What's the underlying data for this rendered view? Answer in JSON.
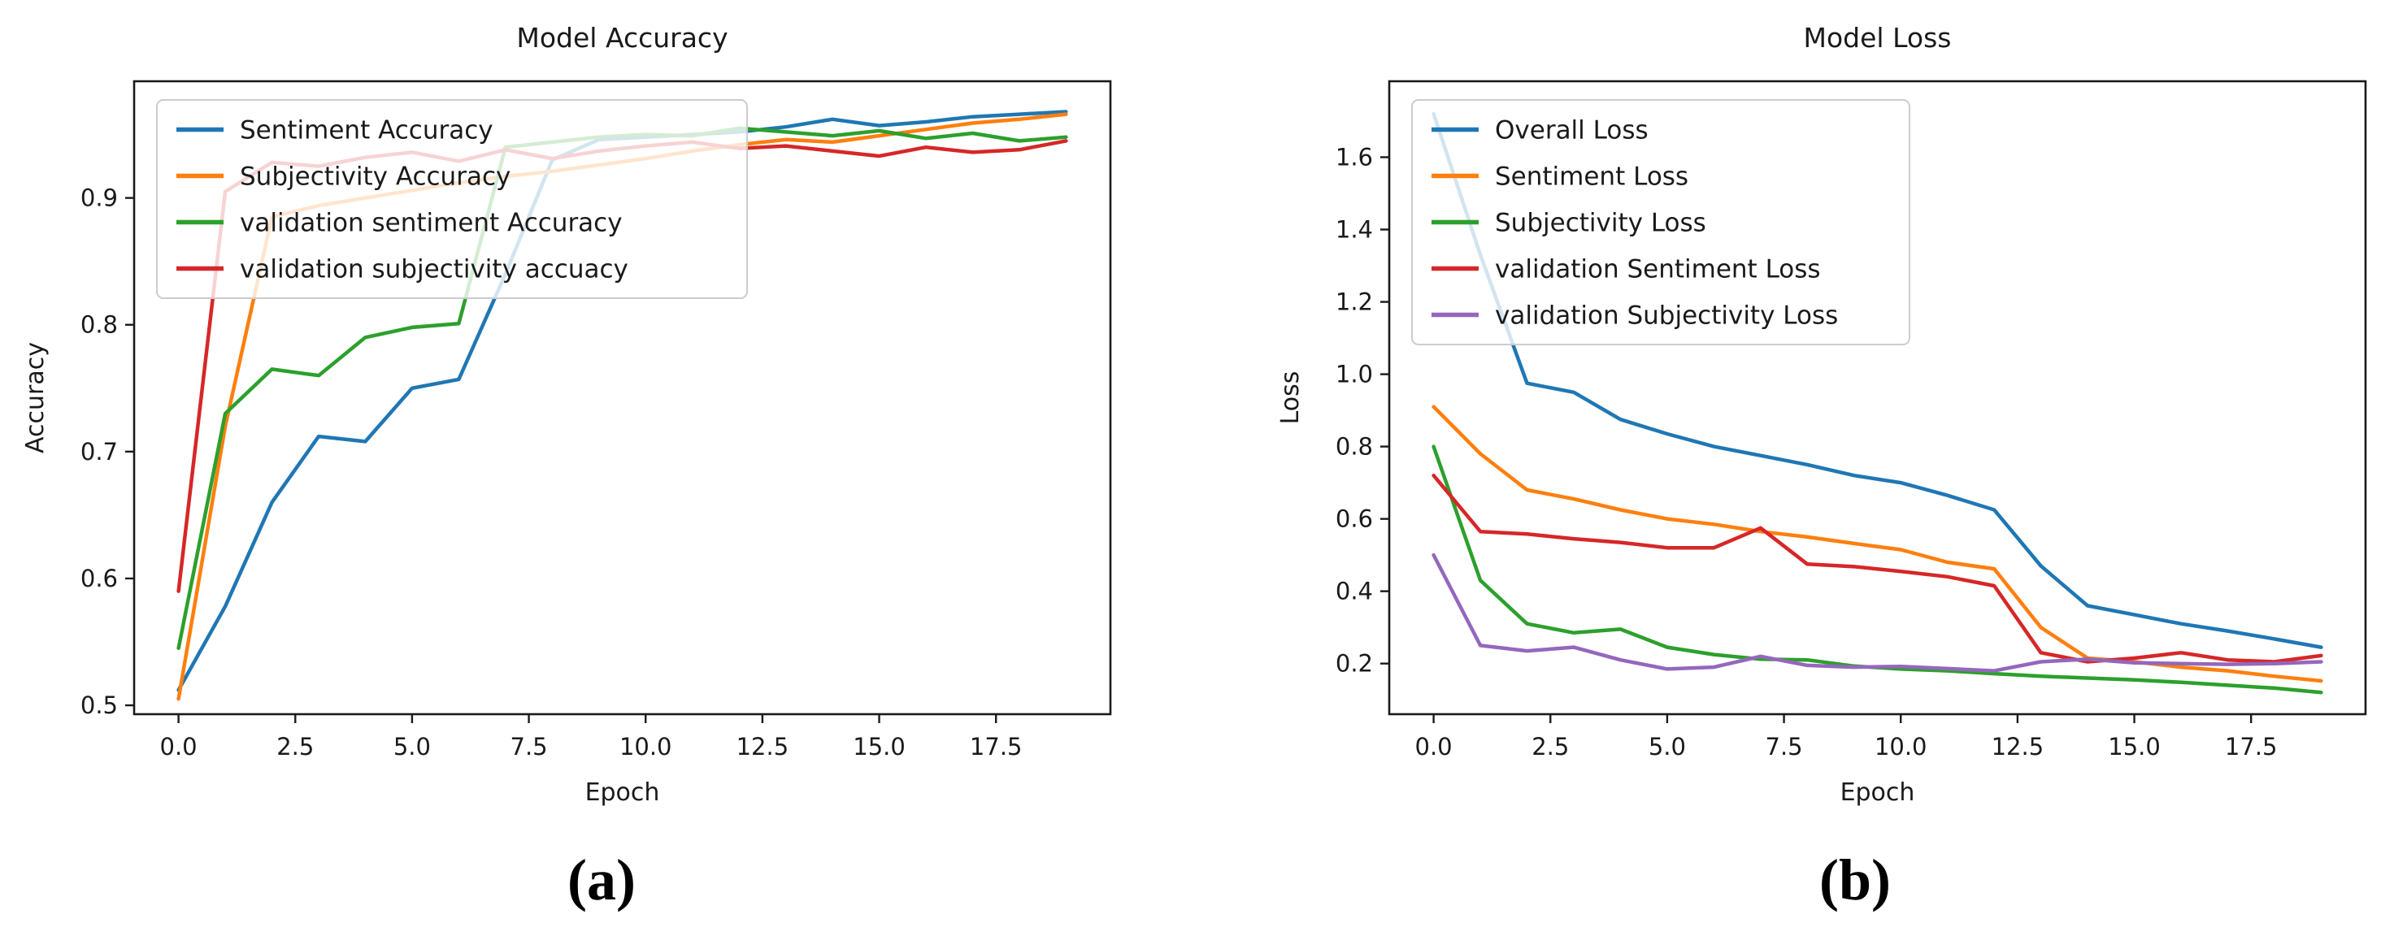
{
  "figure": {
    "captions": [
      "(a)",
      "(b)"
    ]
  },
  "chart_data": [
    {
      "type": "line",
      "title": "Model Accuracy",
      "xlabel": "Epoch",
      "ylabel": "Accuracy",
      "legend_position": "upper left",
      "grid": false,
      "x": [
        0,
        1,
        2,
        3,
        4,
        5,
        6,
        7,
        8,
        9,
        10,
        11,
        12,
        13,
        14,
        15,
        16,
        17,
        18,
        19
      ],
      "xlim": [
        -0.95,
        19.95
      ],
      "ylim": [
        0.493,
        0.992
      ],
      "xticks": [
        0.0,
        2.5,
        5.0,
        7.5,
        10.0,
        12.5,
        15.0,
        17.5
      ],
      "xtick_labels": [
        "0.0",
        "2.5",
        "5.0",
        "7.5",
        "10.0",
        "12.5",
        "15.0",
        "17.5"
      ],
      "yticks": [
        0.5,
        0.6,
        0.7,
        0.8,
        0.9
      ],
      "ytick_labels": [
        "0.5",
        "0.6",
        "0.7",
        "0.8",
        "0.9"
      ],
      "series": [
        {
          "name": "Sentiment Accuracy",
          "color": "#1f77b4",
          "values": [
            0.512,
            0.578,
            0.66,
            0.712,
            0.708,
            0.75,
            0.757,
            0.84,
            0.93,
            0.946,
            0.948,
            0.95,
            0.952,
            0.956,
            0.962,
            0.957,
            0.96,
            0.964,
            0.966,
            0.968
          ]
        },
        {
          "name": "Subjectivity Accuracy",
          "color": "#ff7f0e",
          "values": [
            0.505,
            0.72,
            0.885,
            0.894,
            0.9,
            0.906,
            0.912,
            0.917,
            0.921,
            0.926,
            0.931,
            0.937,
            0.942,
            0.946,
            0.944,
            0.949,
            0.954,
            0.959,
            0.962,
            0.966
          ]
        },
        {
          "name": "validation sentiment Accuracy",
          "color": "#2ca02c",
          "values": [
            0.545,
            0.73,
            0.765,
            0.76,
            0.79,
            0.798,
            0.801,
            0.94,
            0.944,
            0.948,
            0.95,
            0.949,
            0.955,
            0.952,
            0.949,
            0.953,
            0.947,
            0.951,
            0.945,
            0.948
          ]
        },
        {
          "name": "validation subjectivity accuacy",
          "color": "#d62728",
          "values": [
            0.59,
            0.905,
            0.928,
            0.925,
            0.932,
            0.936,
            0.929,
            0.938,
            0.931,
            0.937,
            0.941,
            0.944,
            0.939,
            0.941,
            0.937,
            0.933,
            0.94,
            0.936,
            0.938,
            0.945
          ]
        }
      ]
    },
    {
      "type": "line",
      "title": "Model Loss",
      "xlabel": "Epoch",
      "ylabel": "Loss",
      "legend_position": "upper left",
      "grid": false,
      "x": [
        0,
        1,
        2,
        3,
        4,
        5,
        6,
        7,
        8,
        9,
        10,
        11,
        12,
        13,
        14,
        15,
        16,
        17,
        18,
        19
      ],
      "xlim": [
        -0.95,
        19.95
      ],
      "ylim": [
        0.06,
        1.81
      ],
      "xticks": [
        0.0,
        2.5,
        5.0,
        7.5,
        10.0,
        12.5,
        15.0,
        17.5
      ],
      "xtick_labels": [
        "0.0",
        "2.5",
        "5.0",
        "7.5",
        "10.0",
        "12.5",
        "15.0",
        "17.5"
      ],
      "yticks": [
        0.2,
        0.4,
        0.6,
        0.8,
        1.0,
        1.2,
        1.4,
        1.6
      ],
      "ytick_labels": [
        "0.2",
        "0.4",
        "0.6",
        "0.8",
        "1.0",
        "1.2",
        "1.4",
        "1.6"
      ],
      "series": [
        {
          "name": "Overall Loss",
          "color": "#1f77b4",
          "values": [
            1.72,
            1.33,
            0.975,
            0.95,
            0.875,
            0.835,
            0.8,
            0.775,
            0.75,
            0.72,
            0.7,
            0.665,
            0.625,
            0.47,
            0.36,
            0.335,
            0.31,
            0.29,
            0.268,
            0.245
          ]
        },
        {
          "name": "Sentiment Loss",
          "color": "#ff7f0e",
          "values": [
            0.91,
            0.78,
            0.68,
            0.655,
            0.625,
            0.6,
            0.585,
            0.565,
            0.55,
            0.532,
            0.515,
            0.48,
            0.462,
            0.3,
            0.215,
            0.205,
            0.19,
            0.18,
            0.165,
            0.152
          ]
        },
        {
          "name": "Subjectivity Loss",
          "color": "#2ca02c",
          "values": [
            0.8,
            0.43,
            0.31,
            0.285,
            0.295,
            0.245,
            0.225,
            0.212,
            0.21,
            0.193,
            0.185,
            0.18,
            0.172,
            0.165,
            0.16,
            0.155,
            0.148,
            0.14,
            0.132,
            0.12
          ]
        },
        {
          "name": "validation Sentiment Loss",
          "color": "#d62728",
          "values": [
            0.72,
            0.565,
            0.558,
            0.545,
            0.535,
            0.52,
            0.52,
            0.575,
            0.475,
            0.468,
            0.455,
            0.44,
            0.415,
            0.23,
            0.205,
            0.215,
            0.23,
            0.21,
            0.205,
            0.222
          ]
        },
        {
          "name": "validation Subjectivity Loss",
          "color": "#9467bd",
          "values": [
            0.5,
            0.25,
            0.235,
            0.245,
            0.21,
            0.185,
            0.19,
            0.22,
            0.195,
            0.19,
            0.192,
            0.186,
            0.18,
            0.205,
            0.212,
            0.202,
            0.2,
            0.198,
            0.2,
            0.205
          ]
        }
      ]
    }
  ]
}
